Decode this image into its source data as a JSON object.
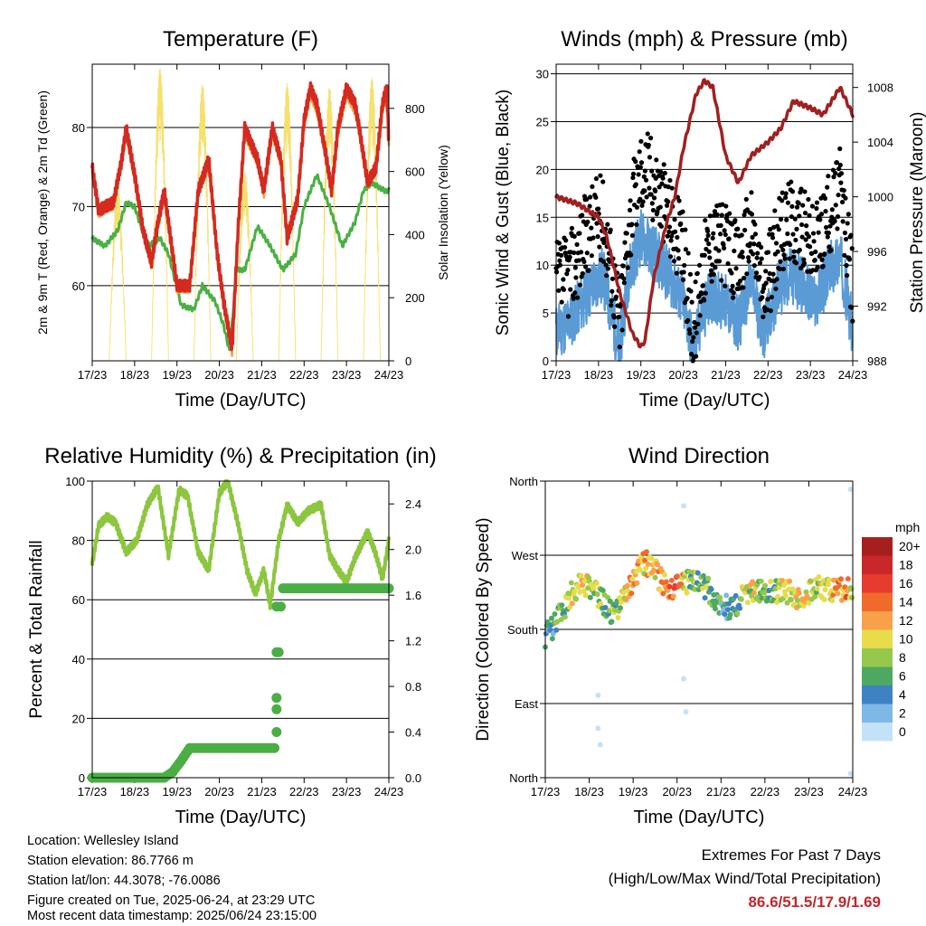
{
  "chart_data": [
    {
      "type": "line",
      "panel": "temperature",
      "title": "Temperature (F)",
      "xlabel": "Time (Day/UTC)",
      "ylabel": "2m & 9m T (Red, Orange) & 2m Td (Green)",
      "y2label": "Solar Insolation (Yellow)",
      "x_ticks": [
        "17/23",
        "18/23",
        "19/23",
        "20/23",
        "21/23",
        "22/23",
        "23/23",
        "24/23"
      ],
      "xlim": [
        0,
        7
      ],
      "ylim": [
        50.5,
        88
      ],
      "yticks": [
        60,
        70,
        80
      ],
      "y2lim": [
        0,
        940
      ],
      "y2ticks": [
        0,
        200,
        400,
        600,
        800
      ],
      "grid": true,
      "series": [
        {
          "name": "2m T",
          "color": "#d42a20",
          "x": [
            0,
            0.15,
            0.3,
            0.5,
            0.7,
            0.8,
            1.0,
            1.2,
            1.4,
            1.55,
            1.7,
            2.0,
            2.3,
            2.5,
            2.75,
            2.95,
            3.1,
            3.3,
            3.45,
            3.6,
            3.9,
            4.05,
            4.25,
            4.45,
            4.6,
            4.85,
            5.0,
            5.15,
            5.3,
            5.5,
            5.65,
            5.8,
            6.0,
            6.2,
            6.3,
            6.5,
            6.7,
            6.85,
            6.95,
            7.0
          ],
          "y": [
            75,
            69.5,
            70,
            70.5,
            76,
            80,
            74,
            67,
            63,
            68,
            72,
            60,
            60,
            72,
            76,
            64,
            58,
            52,
            68,
            80,
            76,
            72,
            80,
            76,
            66,
            71,
            81,
            85,
            83,
            77,
            72,
            80,
            85,
            83,
            80,
            73,
            75,
            83,
            85,
            78
          ]
        },
        {
          "name": "9m T",
          "color": "#f5a24a",
          "x": [
            0,
            0.15,
            0.3,
            0.5,
            0.7,
            0.8,
            1.0,
            1.2,
            1.4,
            1.55,
            1.7,
            2.0,
            2.3,
            2.5,
            2.75,
            2.95,
            3.1,
            3.3,
            3.45,
            3.6,
            3.9,
            4.05,
            4.25,
            4.45,
            4.6,
            4.85,
            5.0,
            5.15,
            5.3,
            5.5,
            5.65,
            5.8,
            6.0,
            6.2,
            6.3,
            6.5,
            6.7,
            6.85,
            6.95,
            7.0
          ],
          "y": [
            74.5,
            69,
            69.5,
            70,
            75.5,
            79,
            73.5,
            66.5,
            62.5,
            67.5,
            71,
            59.5,
            59.5,
            71.5,
            75,
            63.5,
            57.5,
            51.5,
            67,
            79,
            75.5,
            71.5,
            79,
            75.5,
            65.5,
            70.5,
            80,
            84,
            82,
            76.5,
            71.5,
            79,
            84,
            82,
            79.5,
            72.5,
            74.5,
            82,
            84,
            77.5
          ]
        },
        {
          "name": "2m Td",
          "color": "#4bb044",
          "x": [
            0,
            0.3,
            0.6,
            0.8,
            1.0,
            1.3,
            1.6,
            1.8,
            2.1,
            2.4,
            2.6,
            2.9,
            3.1,
            3.25,
            3.4,
            3.6,
            3.9,
            4.2,
            4.5,
            4.8,
            5.0,
            5.3,
            5.6,
            5.9,
            6.2,
            6.4,
            6.6,
            6.9,
            7.0
          ],
          "y": [
            66,
            65,
            67,
            70.5,
            70,
            65,
            66,
            64,
            57.5,
            57,
            60,
            58,
            55,
            51.5,
            62,
            62,
            67.5,
            65,
            62,
            64,
            70,
            74,
            70,
            65,
            68,
            72,
            73,
            72,
            72
          ]
        },
        {
          "name": "Solar Insolation",
          "color": "#f6e06e",
          "axis": "y2",
          "peaks": [
            0.6,
            1.6,
            2.6,
            3.6,
            4.6,
            5.6,
            6.6
          ],
          "peak_values": [
            550,
            930,
            880,
            600,
            880,
            870,
            900
          ]
        }
      ]
    },
    {
      "type": "scatter",
      "panel": "winds",
      "title": "Winds (mph) & Pressure (mb)",
      "xlabel": "Time (Day/UTC)",
      "ylabel": "Sonic Wind & Gust (Blue, Black)",
      "y2label": "Station Pressure (Maroon)",
      "x_ticks": [
        "17/23",
        "18/23",
        "19/23",
        "20/23",
        "21/23",
        "22/23",
        "23/23",
        "24/23"
      ],
      "xlim": [
        0,
        7
      ],
      "ylim": [
        0,
        31
      ],
      "yticks": [
        0,
        5,
        10,
        15,
        20,
        25,
        30
      ],
      "y2lim": [
        988,
        1009.7
      ],
      "y2ticks": [
        988,
        992,
        996,
        1000,
        1004,
        1008
      ],
      "grid": true,
      "series": [
        {
          "name": "Sonic Wind",
          "color": "#5a9bd5",
          "x": [
            0,
            0.3,
            0.6,
            0.9,
            1.1,
            1.3,
            1.5,
            1.7,
            2.0,
            2.2,
            2.5,
            2.8,
            3.0,
            3.25,
            3.45,
            3.7,
            4.0,
            4.3,
            4.6,
            4.9,
            5.2,
            5.5,
            5.8,
            6.1,
            6.4,
            6.7,
            7.0
          ],
          "y": [
            3,
            4,
            6,
            8,
            9,
            5,
            1,
            9,
            13,
            12,
            10,
            8,
            6,
            1,
            5,
            7,
            6,
            4,
            8,
            3,
            7,
            9,
            8,
            6,
            9,
            11,
            3
          ]
        },
        {
          "name": "Gust",
          "color": "#000000",
          "x": [
            0,
            0.3,
            0.6,
            0.9,
            1.1,
            1.3,
            1.5,
            1.7,
            2.0,
            2.2,
            2.5,
            2.8,
            3.0,
            3.25,
            3.45,
            3.7,
            4.0,
            4.3,
            4.6,
            4.9,
            5.2,
            5.5,
            5.8,
            6.1,
            6.4,
            6.7,
            7.0
          ],
          "y": [
            8,
            9,
            12,
            15,
            15,
            10,
            4,
            14,
            20,
            20,
            17,
            14,
            11,
            3,
            10,
            13,
            12,
            10,
            14,
            7,
            12,
            15,
            14,
            12,
            15,
            18,
            8
          ]
        },
        {
          "name": "Station Pressure",
          "color": "#a02020",
          "axis": "y2",
          "x": [
            0,
            0.5,
            1.0,
            1.2,
            1.5,
            1.8,
            2.0,
            2.1,
            2.3,
            2.6,
            2.8,
            3.0,
            3.3,
            3.5,
            3.7,
            4.0,
            4.3,
            4.6,
            5.0,
            5.3,
            5.6,
            6.0,
            6.3,
            6.5,
            6.7,
            7.0
          ],
          "y": [
            1000,
            999.5,
            998.5,
            997,
            993,
            990,
            989,
            989.5,
            994,
            998,
            1000,
            1003.5,
            1007.5,
            1008.5,
            1008,
            1003,
            1001,
            1003,
            1004,
            1005,
            1007,
            1006.5,
            1006,
            1007,
            1008,
            1006
          ]
        }
      ]
    },
    {
      "type": "line",
      "panel": "humidity",
      "title": "Relative Humidity (%) & Precipitation (in)",
      "xlabel": "Time (Day/UTC)",
      "ylabel": "Percent & Total Rainfall",
      "x_ticks": [
        "17/23",
        "18/23",
        "19/23",
        "20/23",
        "21/23",
        "22/23",
        "23/23",
        "24/23"
      ],
      "xlim": [
        0,
        7
      ],
      "ylim": [
        0,
        100
      ],
      "yticks": [
        0,
        20,
        40,
        60,
        80,
        100
      ],
      "y2lim": [
        0,
        2.6
      ],
      "y2ticks": [
        "0.0",
        "0.4",
        "0.8",
        "1.2",
        "1.6",
        "2.0",
        "2.4"
      ],
      "grid": true,
      "series": [
        {
          "name": "Relative Humidity",
          "color": "#8cc63f",
          "x": [
            0,
            0.15,
            0.35,
            0.55,
            0.8,
            1.05,
            1.3,
            1.55,
            1.8,
            2.05,
            2.25,
            2.5,
            2.75,
            3.0,
            3.2,
            3.45,
            3.65,
            3.85,
            4.05,
            4.2,
            4.4,
            4.6,
            4.85,
            5.1,
            5.4,
            5.6,
            5.8,
            6.0,
            6.2,
            6.5,
            6.7,
            6.85,
            7.0
          ],
          "y": [
            72,
            85,
            88,
            86,
            76,
            80,
            92,
            98,
            75,
            97,
            95,
            76,
            70,
            96,
            100,
            85,
            70,
            62,
            70,
            58,
            80,
            92,
            86,
            90,
            92,
            75,
            70,
            66,
            74,
            83,
            75,
            67,
            80
          ]
        },
        {
          "name": "Total Precipitation",
          "color": "#4aae45",
          "axis": "y2",
          "x": [
            0,
            1.7,
            1.9,
            2.1,
            2.3,
            3.0,
            4.3,
            4.33,
            4.36,
            4.4,
            4.45,
            4.5,
            5.0,
            6.0,
            7.0
          ],
          "y": [
            0,
            0,
            0.05,
            0.15,
            0.26,
            0.26,
            0.26,
            0.4,
            0.7,
            1.1,
            1.5,
            1.66,
            1.66,
            1.66,
            1.66
          ]
        }
      ]
    },
    {
      "type": "scatter",
      "panel": "wind_direction",
      "title": "Wind Direction",
      "xlabel": "Time (Day/UTC)",
      "ylabel": "Direction (Colored By Speed)",
      "x_ticks": [
        "17/23",
        "18/23",
        "19/23",
        "20/23",
        "21/23",
        "22/23",
        "23/23",
        "24/23"
      ],
      "xlim": [
        0,
        7
      ],
      "ylim": [
        0,
        360
      ],
      "yticks": [
        "North",
        "East",
        "South",
        "West",
        "North"
      ],
      "ytick_values": [
        0,
        90,
        180,
        270,
        360
      ],
      "grid": true,
      "colorbar_title": "mph",
      "colorbar_labels": [
        "20+",
        "18",
        "16",
        "14",
        "12",
        "10",
        "8",
        "6",
        "4",
        "2",
        "0"
      ],
      "colorbar_colors": [
        "#a51f1f",
        "#c9272a",
        "#e63b2e",
        "#f06a2c",
        "#f9a04a",
        "#e6dc4c",
        "#96c84b",
        "#4ea862",
        "#3e82c4",
        "#7fb7e6",
        "#c4e2f7"
      ],
      "series": [
        {
          "name": "Wind Direction",
          "x": [
            0,
            0.2,
            0.4,
            0.6,
            0.9,
            1.2,
            1.5,
            1.7,
            1.9,
            2.2,
            2.5,
            2.7,
            3.0,
            3.3,
            3.6,
            3.9,
            4.2,
            4.5,
            4.8,
            5.1,
            5.4,
            5.7,
            6.0,
            6.3,
            6.6,
            6.9,
            7.0
          ],
          "y": [
            170,
            185,
            205,
            225,
            235,
            220,
            200,
            210,
            225,
            265,
            250,
            235,
            230,
            240,
            235,
            215,
            205,
            220,
            230,
            225,
            230,
            220,
            225,
            230,
            225,
            230,
            210
          ],
          "speed": [
            4,
            5,
            7,
            9,
            10,
            8,
            6,
            8,
            12,
            12,
            10,
            13,
            15,
            6,
            7,
            6,
            4,
            8,
            10,
            6,
            9,
            11,
            9,
            8,
            12,
            14,
            4
          ]
        }
      ]
    }
  ],
  "info": {
    "location": "Location: Wellesley Island",
    "elevation": "Station elevation: 86.7766 m",
    "latlon": "Station lat/lon: 44.3078; -76.0086",
    "created": "Figure created on Tue, 2025-06-24, at 23:29 UTC",
    "timestamp": "Most recent data timestamp: 2025/06/24 23:15:00"
  },
  "extremes": {
    "title": "Extremes For Past 7 Days",
    "subtitle": "(High/Low/Max Wind/Total Precipitation)",
    "values": "86.6/51.5/17.9/1.69"
  }
}
